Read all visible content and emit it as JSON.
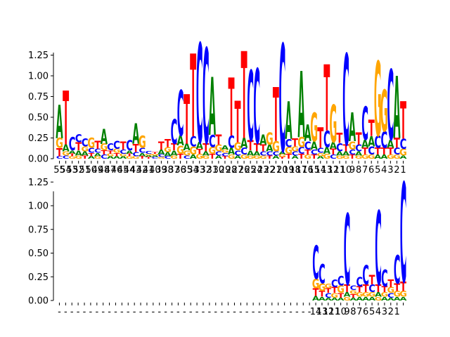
{
  "colors": {
    "A": "#008000",
    "C": "#0000ff",
    "G": "#ffa500",
    "T": "#ff0000",
    "axis": "#000000"
  },
  "chart_data": [
    {
      "type": "sequence-logo",
      "title": "",
      "ylim": [
        0,
        1.45
      ],
      "yticks": [
        "0.00",
        "0.25",
        "0.50",
        "0.75",
        "1.00",
        "1.25"
      ],
      "yvalues": [
        0,
        0.25,
        0.5,
        0.75,
        1.0,
        1.25
      ],
      "xlabels": [
        "55",
        "54",
        "53",
        "52",
        "51",
        "50",
        "49",
        "48",
        "47",
        "46",
        "45",
        "44",
        "43",
        "42",
        "41",
        "40",
        "39",
        "38",
        "37",
        "36",
        "35",
        "34",
        "33",
        "32",
        "31",
        "30",
        "29",
        "28",
        "27",
        "26",
        "25",
        "24",
        "23",
        "22",
        "21",
        "20",
        "19",
        "18",
        "17",
        "16",
        "15",
        "14",
        "13",
        "12",
        "11",
        "10",
        "9",
        "8",
        "7",
        "6",
        "5",
        "4",
        "3",
        "2",
        "1"
      ],
      "columns": [
        {
          "A": 0.4,
          "G": 0.12,
          "T": 0.1,
          "C": 0.03
        },
        {
          "T": 0.65,
          "A": 0.08,
          "G": 0.05,
          "C": 0.04
        },
        {
          "C": 0.16,
          "A": 0.04,
          "G": 0.03,
          "T": 0.03
        },
        {
          "T": 0.1,
          "C": 0.1,
          "A": 0.06,
          "G": 0.04
        },
        {
          "C": 0.1,
          "G": 0.06,
          "A": 0.05,
          "T": 0.04
        },
        {
          "G": 0.12,
          "C": 0.06,
          "T": 0.04,
          "A": 0.03
        },
        {
          "T": 0.1,
          "C": 0.05,
          "A": 0.04,
          "G": 0.03
        },
        {
          "A": 0.18,
          "G": 0.08,
          "C": 0.05,
          "T": 0.05
        },
        {
          "C": 0.08,
          "T": 0.04,
          "A": 0.03,
          "G": 0.03
        },
        {
          "C": 0.1,
          "G": 0.05,
          "T": 0.04,
          "A": 0.03
        },
        {
          "T": 0.1,
          "C": 0.05,
          "A": 0.03,
          "G": 0.03
        },
        {
          "C": 0.12,
          "A": 0.04,
          "G": 0.03,
          "T": 0.03
        },
        {
          "A": 0.25,
          "T": 0.1,
          "C": 0.05,
          "G": 0.03
        },
        {
          "G": 0.15,
          "C": 0.06,
          "A": 0.04,
          "T": 0.03
        },
        {
          "C": 0.03,
          "T": 0.02,
          "A": 0.02,
          "G": 0.02
        },
        {
          "C": 0.02,
          "A": 0.02,
          "G": 0.02,
          "T": 0.02
        },
        {
          "T": 0.1,
          "A": 0.06,
          "C": 0.03,
          "G": 0.02
        },
        {
          "T": 0.1,
          "G": 0.06,
          "A": 0.05,
          "C": 0.03
        },
        {
          "C": 0.3,
          "T": 0.08,
          "A": 0.06,
          "G": 0.04
        },
        {
          "C": 0.55,
          "A": 0.12,
          "G": 0.1,
          "T": 0.06
        },
        {
          "T": 0.6,
          "A": 0.08,
          "G": 0.06,
          "C": 0.04
        },
        {
          "T": 1.0,
          "C": 0.12,
          "G": 0.1,
          "A": 0.05
        },
        {
          "C": 1.2,
          "A": 0.08,
          "G": 0.06,
          "T": 0.06
        },
        {
          "C": 1.15,
          "T": 0.1,
          "A": 0.05,
          "G": 0.04
        },
        {
          "A": 0.7,
          "C": 0.15,
          "G": 0.08,
          "T": 0.06
        },
        {
          "T": 0.12,
          "G": 0.08,
          "C": 0.05,
          "A": 0.04
        },
        {
          "A": 0.05,
          "C": 0.04,
          "G": 0.04,
          "T": 0.03
        },
        {
          "T": 0.7,
          "C": 0.15,
          "A": 0.08,
          "G": 0.05
        },
        {
          "T": 0.5,
          "G": 0.1,
          "C": 0.06,
          "A": 0.04
        },
        {
          "T": 1.05,
          "A": 0.12,
          "C": 0.08,
          "G": 0.05
        },
        {
          "C": 0.85,
          "T": 0.12,
          "A": 0.06,
          "G": 0.04
        },
        {
          "C": 0.9,
          "T": 0.1,
          "A": 0.05,
          "G": 0.04
        },
        {
          "A": 0.12,
          "T": 0.08,
          "C": 0.05,
          "G": 0.04
        },
        {
          "G": 0.15,
          "A": 0.08,
          "C": 0.05,
          "T": 0.04
        },
        {
          "T": 0.65,
          "G": 0.12,
          "C": 0.05,
          "A": 0.04
        },
        {
          "C": 1.3,
          "A": 0.04,
          "G": 0.03,
          "T": 0.02
        },
        {
          "A": 0.45,
          "C": 0.1,
          "G": 0.08,
          "T": 0.06
        },
        {
          "T": 0.1,
          "G": 0.06,
          "C": 0.05,
          "A": 0.04
        },
        {
          "A": 0.8,
          "G": 0.12,
          "C": 0.08,
          "T": 0.06
        },
        {
          "A": 0.2,
          "C": 0.1,
          "T": 0.06,
          "G": 0.05
        },
        {
          "G": 0.35,
          "A": 0.1,
          "C": 0.06,
          "T": 0.05
        },
        {
          "T": 0.25,
          "C": 0.06,
          "G": 0.04,
          "A": 0.03
        },
        {
          "T": 0.8,
          "C": 0.2,
          "A": 0.08,
          "G": 0.06
        },
        {
          "G": 0.45,
          "A": 0.08,
          "T": 0.07,
          "C": 0.05
        },
        {
          "T": 0.12,
          "C": 0.1,
          "A": 0.05,
          "G": 0.04
        },
        {
          "C": 1.1,
          "T": 0.08,
          "A": 0.05,
          "G": 0.04
        },
        {
          "A": 0.35,
          "G": 0.1,
          "C": 0.06,
          "T": 0.05
        },
        {
          "T": 0.15,
          "C": 0.08,
          "A": 0.05,
          "G": 0.04
        },
        {
          "C": 0.4,
          "A": 0.1,
          "T": 0.08,
          "G": 0.05
        },
        {
          "T": 0.2,
          "A": 0.12,
          "C": 0.1,
          "G": 0.05
        },
        {
          "G": 0.9,
          "C": 0.15,
          "T": 0.08,
          "A": 0.05
        },
        {
          "G": 0.5,
          "C": 0.2,
          "T": 0.08,
          "A": 0.05
        },
        {
          "C": 0.85,
          "A": 0.1,
          "T": 0.08,
          "G": 0.05
        },
        {
          "A": 0.75,
          "T": 0.12,
          "C": 0.08,
          "G": 0.05
        },
        {
          "T": 0.45,
          "C": 0.12,
          "G": 0.08,
          "A": 0.04
        }
      ]
    },
    {
      "type": "sequence-logo",
      "title": "",
      "ylim": [
        0,
        1.3
      ],
      "yticks": [
        "0.00",
        "0.25",
        "0.50",
        "0.75",
        "1.00",
        "1.25"
      ],
      "yvalues": [
        0,
        0.25,
        0.5,
        0.75,
        1.0,
        1.25
      ],
      "xlabels": [
        "-",
        "-",
        "-",
        "-",
        "-",
        "-",
        "-",
        "-",
        "-",
        "-",
        "-",
        "-",
        "-",
        "-",
        "-",
        "-",
        "-",
        "-",
        "-",
        "-",
        "-",
        "-",
        "-",
        "-",
        "-",
        "-",
        "-",
        "-",
        "-",
        "-",
        "-",
        "-",
        "-",
        "-",
        "-",
        "-",
        "-",
        "-",
        "-",
        "-",
        "-",
        "14",
        "13",
        "12",
        "11",
        "10",
        "9",
        "8",
        "7",
        "6",
        "5",
        "4",
        "3",
        "2",
        "1"
      ],
      "columns": [
        {},
        {},
        {},
        {},
        {},
        {},
        {},
        {},
        {},
        {},
        {},
        {},
        {},
        {},
        {},
        {},
        {},
        {},
        {},
        {},
        {},
        {},
        {},
        {},
        {},
        {},
        {},
        {},
        {},
        {},
        {},
        {},
        {},
        {},
        {},
        {},
        {},
        {},
        {},
        {},
        {},
        {
          "C": 0.35,
          "G": 0.1,
          "T": 0.08,
          "A": 0.05
        },
        {
          "C": 0.2,
          "G": 0.08,
          "T": 0.06,
          "A": 0.04
        },
        {
          "C": 0.05,
          "T": 0.05,
          "G": 0.05,
          "A": 0.03
        },
        {
          "C": 0.08,
          "T": 0.06,
          "G": 0.05,
          "A": 0.03
        },
        {
          "C": 0.1,
          "G": 0.08,
          "T": 0.05,
          "A": 0.03
        },
        {
          "C": 0.75,
          "T": 0.08,
          "A": 0.05,
          "G": 0.04
        },
        {
          "C": 0.05,
          "T": 0.04,
          "G": 0.04,
          "A": 0.03
        },
        {
          "C": 0.1,
          "T": 0.06,
          "G": 0.05,
          "A": 0.04
        },
        {
          "C": 0.2,
          "T": 0.08,
          "G": 0.05,
          "A": 0.04
        },
        {
          "T": 0.1,
          "C": 0.08,
          "G": 0.05,
          "A": 0.04
        },
        {
          "C": 0.78,
          "T": 0.08,
          "A": 0.05,
          "G": 0.04
        },
        {
          "C": 0.18,
          "T": 0.06,
          "G": 0.05,
          "A": 0.04
        },
        {
          "T": 0.08,
          "G": 0.06,
          "C": 0.05,
          "A": 0.03
        },
        {
          "C": 0.3,
          "T": 0.08,
          "G": 0.06,
          "A": 0.04
        },
        {
          "C": 1.05,
          "T": 0.1,
          "G": 0.06,
          "A": 0.04
        }
      ]
    }
  ]
}
